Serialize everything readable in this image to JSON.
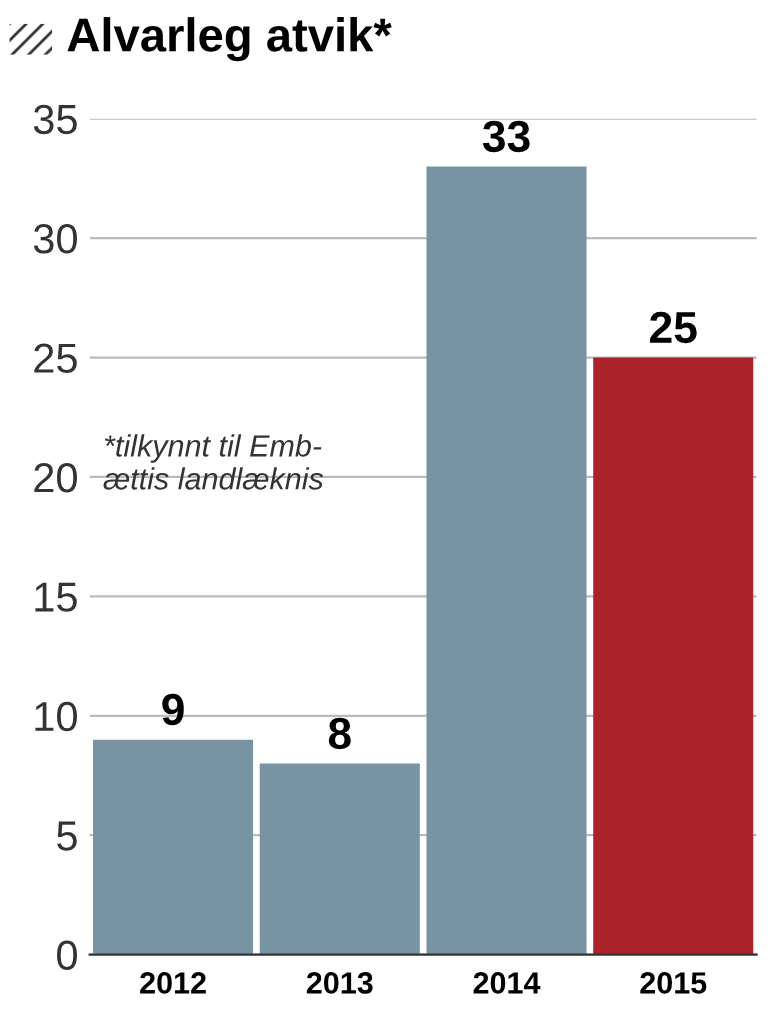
{
  "chart_data": {
    "type": "bar",
    "title": "Alvarleg atvik*",
    "categories": [
      "2012",
      "2013",
      "2014",
      "2015"
    ],
    "values": [
      9,
      8,
      33,
      25
    ],
    "colors": [
      "#7893a2",
      "#7893a2",
      "#7893a2",
      "#a92328"
    ],
    "ylim": [
      0,
      35
    ],
    "yticks": [
      0,
      5,
      10,
      15,
      20,
      25,
      30,
      35
    ],
    "grid": "y",
    "data_labels": true,
    "annotations": [
      "*tilkynnt til Emb-\nættis landlæknis"
    ]
  }
}
